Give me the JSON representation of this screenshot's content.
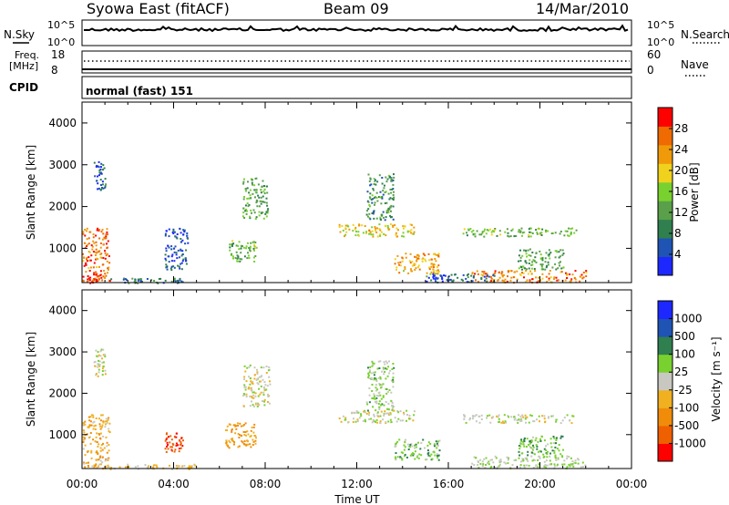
{
  "header": {
    "station": "Syowa East (fitACF)",
    "beam": "Beam 09",
    "date": "14/Mar/2010"
  },
  "noise_panel": {
    "left_label": "N.Sky",
    "left_ticks": [
      "10^5",
      "10^0"
    ],
    "right_label": "N.Search",
    "right_ticks": [
      "10^5",
      "10^0"
    ]
  },
  "freq_panel": {
    "left_label_top": "Freq.",
    "left_label_unit": "[MHz]",
    "left_ticks": [
      "18",
      "8"
    ],
    "right_label": "Nave",
    "right_ticks": [
      "60",
      "0"
    ]
  },
  "cpid": {
    "label": "CPID",
    "mode": "normal (fast) 151"
  },
  "colors": {
    "power_scale": [
      "#1c28ff",
      "#1f53b4",
      "#2f7f4f",
      "#5aa04a",
      "#78d12e",
      "#f0d21e",
      "#f09a0a",
      "#ef6a00",
      "#ff0000"
    ],
    "velocity_scale": [
      "#ff0000",
      "#ef6000",
      "#f08c0a",
      "#f0b020",
      "#c8c8c0",
      "#78d12e",
      "#2f7f4f",
      "#1f53b4",
      "#1c28ff"
    ]
  },
  "chart_data": [
    {
      "type": "heatmap",
      "name": "power",
      "ylabel": "Slant Range [km]",
      "xlabel": "",
      "x_ticks": [
        "00:00",
        "04:00",
        "08:00",
        "12:00",
        "16:00",
        "20:00",
        "00:00"
      ],
      "x_range_hours": [
        0,
        24
      ],
      "y_ticks": [
        1000,
        2000,
        3000,
        4000
      ],
      "y_range_km": [
        180,
        4500
      ],
      "colorbar": {
        "label": "Power [dB]",
        "ticks": [
          4,
          8,
          12,
          16,
          20,
          24,
          28
        ],
        "range": [
          0,
          32
        ]
      },
      "patches": [
        {
          "t0": 0.0,
          "t1": 1.2,
          "r0": 200,
          "r1": 1500,
          "v": 26
        },
        {
          "t0": 0.5,
          "t1": 1.0,
          "r0": 2400,
          "r1": 3100,
          "v": 6
        },
        {
          "t0": 0.2,
          "t1": 0.8,
          "r0": 180,
          "r1": 400,
          "v": 30
        },
        {
          "t0": 1.0,
          "t1": 4.5,
          "r0": 180,
          "r1": 300,
          "v": 8
        },
        {
          "t0": 3.6,
          "t1": 4.6,
          "r0": 500,
          "r1": 1500,
          "v": 5
        },
        {
          "t0": 6.4,
          "t1": 7.6,
          "r0": 700,
          "r1": 1200,
          "v": 14
        },
        {
          "t0": 7.0,
          "t1": 8.1,
          "r0": 1700,
          "r1": 2700,
          "v": 12
        },
        {
          "t0": 11.2,
          "t1": 14.5,
          "r0": 1300,
          "r1": 1600,
          "v": 20
        },
        {
          "t0": 12.4,
          "t1": 13.6,
          "r0": 1700,
          "r1": 2800,
          "v": 10
        },
        {
          "t0": 13.6,
          "t1": 15.6,
          "r0": 400,
          "r1": 900,
          "v": 22
        },
        {
          "t0": 16.6,
          "t1": 21.6,
          "r0": 1300,
          "r1": 1500,
          "v": 14
        },
        {
          "t0": 17.0,
          "t1": 22.0,
          "r0": 200,
          "r1": 500,
          "v": 25
        },
        {
          "t0": 19.0,
          "t1": 21.0,
          "r0": 500,
          "r1": 1000,
          "v": 12
        },
        {
          "t0": 15.0,
          "t1": 18.0,
          "r0": 200,
          "r1": 400,
          "v": 6
        }
      ]
    },
    {
      "type": "heatmap",
      "name": "velocity",
      "ylabel": "Slant Range [km]",
      "xlabel": "Time UT",
      "x_ticks": [
        "00:00",
        "04:00",
        "08:00",
        "12:00",
        "16:00",
        "20:00",
        "00:00"
      ],
      "x_range_hours": [
        0,
        24
      ],
      "y_ticks": [
        1000,
        2000,
        3000,
        4000
      ],
      "y_range_km": [
        180,
        4500
      ],
      "colorbar": {
        "label": "Velocity [m s⁻¹]",
        "ticks": [
          "1000",
          "500",
          "100",
          "25",
          "-25",
          "-100",
          "-500",
          "-1000"
        ],
        "range": [
          -1200,
          1200
        ]
      },
      "patches": [
        {
          "t0": 0.0,
          "t1": 1.2,
          "r0": 200,
          "r1": 1500,
          "v": -300
        },
        {
          "t0": 0.5,
          "t1": 1.0,
          "r0": 2400,
          "r1": 3100,
          "v": 10
        },
        {
          "t0": 3.6,
          "t1": 4.4,
          "r0": 600,
          "r1": 1100,
          "v": -900
        },
        {
          "t0": 6.2,
          "t1": 7.6,
          "r0": 700,
          "r1": 1300,
          "v": -400
        },
        {
          "t0": 7.0,
          "t1": 8.2,
          "r0": 1700,
          "r1": 2700,
          "v": 0
        },
        {
          "t0": 11.2,
          "t1": 14.5,
          "r0": 1300,
          "r1": 1600,
          "v": 0
        },
        {
          "t0": 12.4,
          "t1": 13.6,
          "r0": 1600,
          "r1": 2800,
          "v": 200
        },
        {
          "t0": 13.6,
          "t1": 15.6,
          "r0": 400,
          "r1": 900,
          "v": 300
        },
        {
          "t0": 16.6,
          "t1": 21.6,
          "r0": 1300,
          "r1": 1500,
          "v": 0
        },
        {
          "t0": 17.0,
          "t1": 22.0,
          "r0": 200,
          "r1": 500,
          "v": 150
        },
        {
          "t0": 19.0,
          "t1": 21.0,
          "r0": 500,
          "r1": 1000,
          "v": 350
        },
        {
          "t0": 1.0,
          "t1": 5.0,
          "r0": 180,
          "r1": 300,
          "v": -150
        }
      ]
    }
  ]
}
